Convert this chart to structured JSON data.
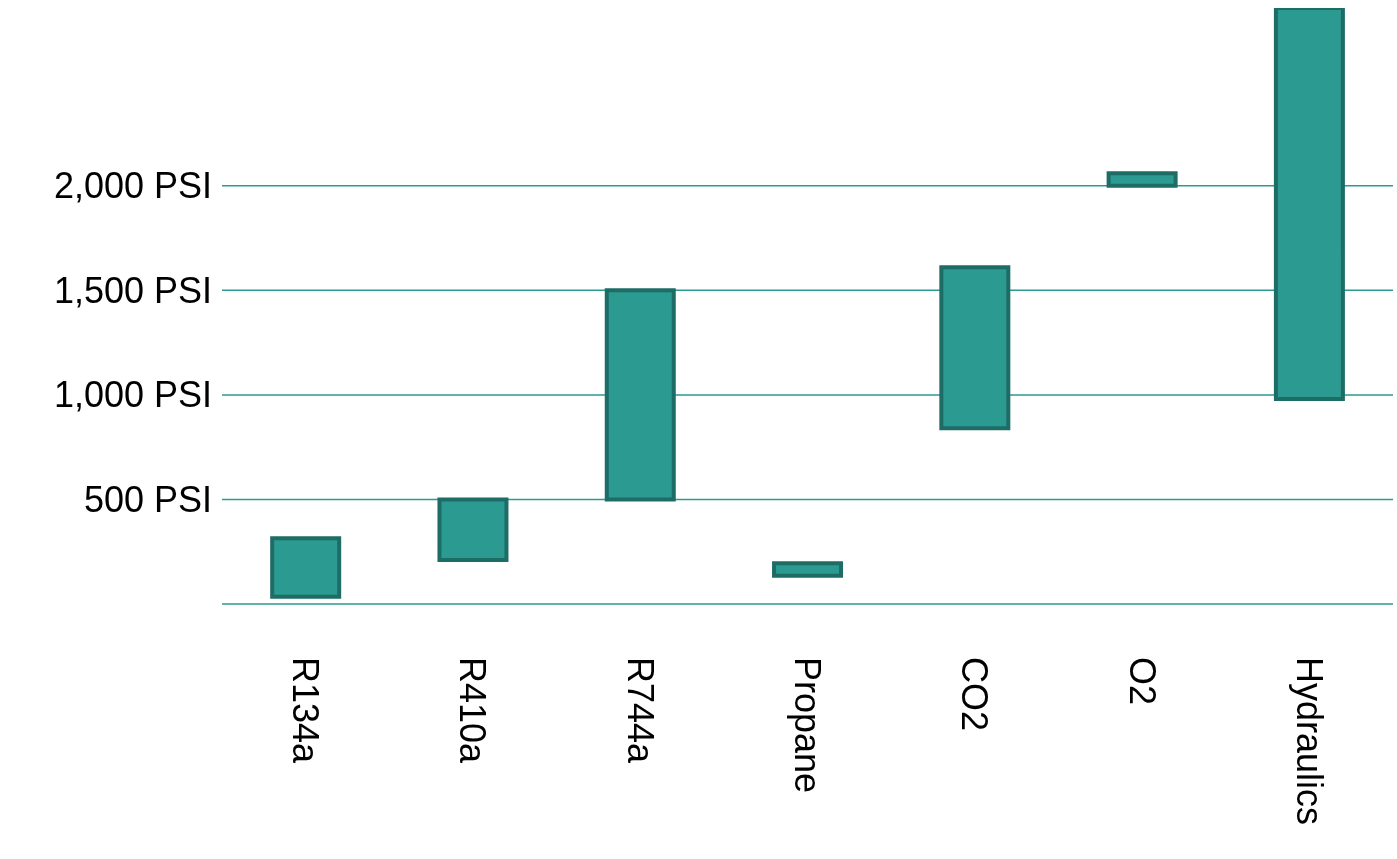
{
  "chart_data": {
    "type": "bar",
    "categories": [
      "R134a",
      "R410a",
      "R744a",
      "Propane",
      "CO2",
      "O2",
      "Hydraulics"
    ],
    "base": [
      35,
      210,
      500,
      135,
      840,
      2000,
      980
    ],
    "values": [
      280,
      290,
      1000,
      60,
      770,
      60,
      1870
    ],
    "color": "#2b9a91",
    "ylim": [
      0,
      2850
    ],
    "yticks": [
      {
        "value": 0,
        "label": null
      },
      {
        "value": 500,
        "label": "500 PSI"
      },
      {
        "value": 1000,
        "label": "1,000 PSI"
      },
      {
        "value": 1500,
        "label": "1,500 PSI"
      },
      {
        "value": 2000,
        "label": "2,000 PSI"
      }
    ],
    "grid": "y"
  }
}
